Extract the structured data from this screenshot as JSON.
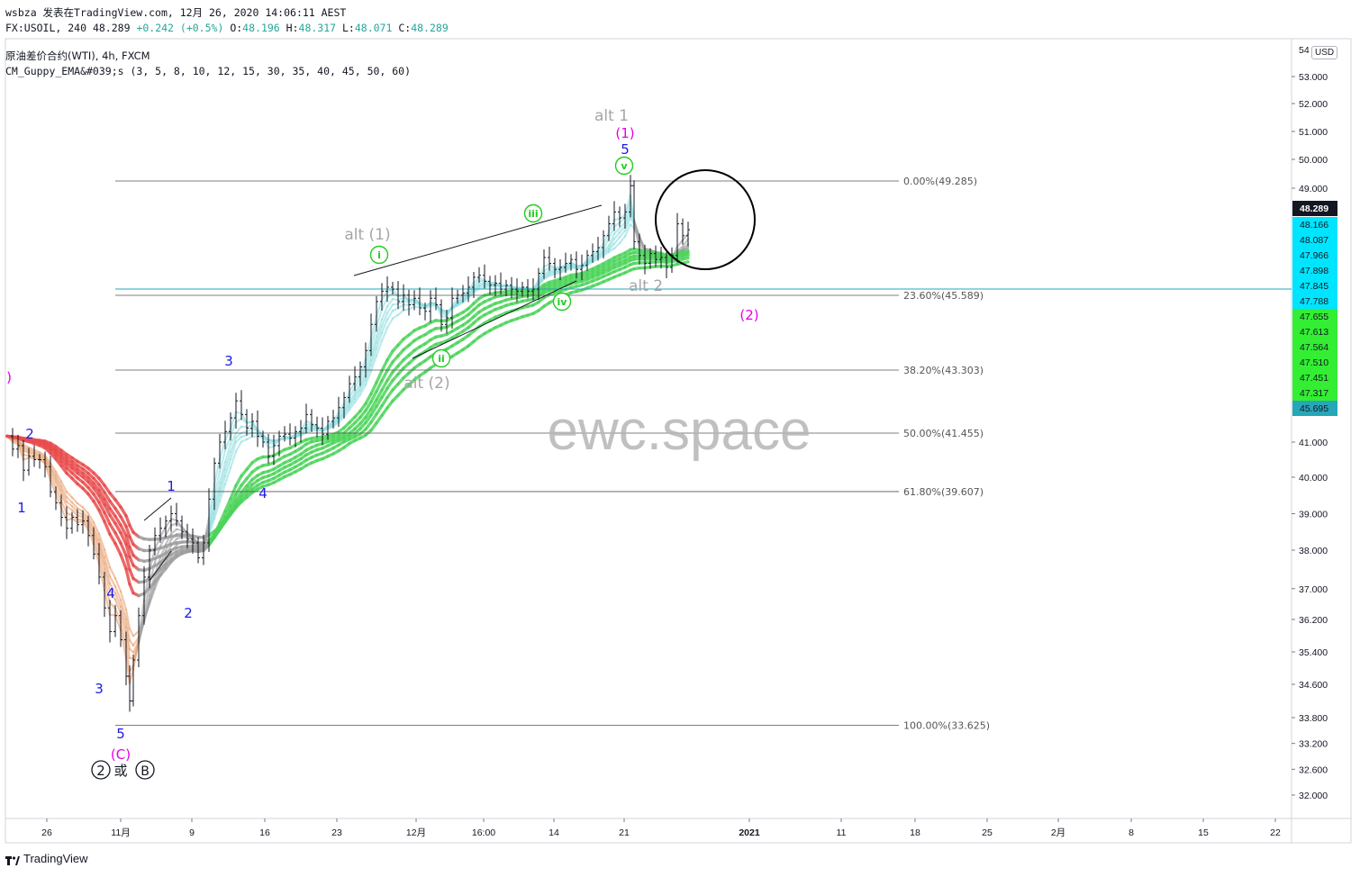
{
  "header": {
    "line1": "wsbza 发表在TradingView.com, 12月 26, 2020 14:06:11 AEST",
    "symbol": "FX:USOIL, 240",
    "last": "48.289",
    "change": "+0.242 (+0.5%)",
    "o_label": "O:",
    "o_value": "48.196",
    "h_label": "H:",
    "h_value": "48.317",
    "l_label": "L:",
    "l_value": "48.071",
    "c_label": "C:",
    "c_value": "48.289",
    "instrument": "原油差价合约(WTI), 4h, FXCM",
    "indicator": "CM_Guppy_EMA&#039;s (3, 5, 8, 10, 12, 15, 30, 35, 40, 45, 50, 60)"
  },
  "footer": {
    "brand": "TradingView"
  },
  "watermark": "ewc.space",
  "currency": "USD",
  "colors": {
    "bullish_ema": "#4cd45a",
    "bullish_fast": "#8fdde0",
    "bearish_ema": "#e84c4c",
    "bearish_fast": "#e8a070",
    "neutral_ema": "#9e9e9e",
    "wave_blue": "#1a1ae6",
    "wave_magenta": "#e600e6",
    "wave_green": "#22cc22",
    "alt_gray": "#a6a6a6",
    "fib_line": "#555555",
    "hline": "#26a7b8"
  },
  "chart_data": {
    "type": "candlestick",
    "title": "原油差价合约(WTI), 4h, FXCM",
    "y_axis": {
      "ticks": [
        32,
        32.6,
        33.2,
        33.8,
        34.6,
        35.4,
        36.2,
        37,
        38,
        39,
        40,
        41
      ],
      "tick_labels": [
        "32.000",
        "32.600",
        "33.200",
        "33.800",
        "34.600",
        "35.400",
        "36.200",
        "37.000",
        "38.000",
        "39.000",
        "40.000",
        "41.000"
      ],
      "upper_ticks": [
        49,
        50,
        51,
        52,
        53
      ],
      "upper_tick_labels": [
        "49.000",
        "50.000",
        "51.000",
        "52.000",
        "53.000"
      ],
      "top_partial": "54",
      "scale": "custom"
    },
    "x_axis": {
      "tick_labels": [
        "26",
        "11月",
        "9",
        "16",
        "23",
        "12月",
        "16:00",
        "14",
        "21",
        "2021",
        "11",
        "18",
        "25",
        "2月",
        "8",
        "15",
        "22"
      ]
    },
    "fibonacci": [
      {
        "level": "0.00%",
        "price": 49.285,
        "label": "0.00%(49.285)"
      },
      {
        "level": "23.60%",
        "price": 45.589,
        "label": "23.60%(45.589)"
      },
      {
        "level": "38.20%",
        "price": 43.303,
        "label": "38.20%(43.303)"
      },
      {
        "level": "50.00%",
        "price": 41.455,
        "label": "50.00%(41.455)"
      },
      {
        "level": "61.80%",
        "price": 39.607,
        "label": "61.80%(39.607)"
      },
      {
        "level": "100.00%",
        "price": 33.625,
        "label": "100.00%(33.625)"
      }
    ],
    "price_scale_labels": [
      {
        "text": "48.289",
        "bg": "#131722",
        "fg": "#ffffff"
      },
      {
        "text": "48.166",
        "bg": "#00e5ff",
        "fg": "#131722"
      },
      {
        "text": "48.087",
        "bg": "#00e5ff",
        "fg": "#131722"
      },
      {
        "text": "47.966",
        "bg": "#00e5ff",
        "fg": "#131722"
      },
      {
        "text": "47.898",
        "bg": "#00e5ff",
        "fg": "#131722"
      },
      {
        "text": "47.845",
        "bg": "#00e5ff",
        "fg": "#131722"
      },
      {
        "text": "47.788",
        "bg": "#00e5ff",
        "fg": "#131722"
      },
      {
        "text": "47.655",
        "bg": "#33ee33",
        "fg": "#131722"
      },
      {
        "text": "47.613",
        "bg": "#33ee33",
        "fg": "#131722"
      },
      {
        "text": "47.564",
        "bg": "#33ee33",
        "fg": "#131722"
      },
      {
        "text": "47.510",
        "bg": "#33ee33",
        "fg": "#131722"
      },
      {
        "text": "47.451",
        "bg": "#33ee33",
        "fg": "#131722"
      },
      {
        "text": "47.317",
        "bg": "#33ee33",
        "fg": "#131722"
      },
      {
        "text": "45.695",
        "bg": "#26a7b8",
        "fg": "#131722"
      }
    ],
    "wave_labels": [
      {
        "text": "1",
        "color": "blue"
      },
      {
        "text": "2",
        "color": "blue"
      },
      {
        "text": "3",
        "color": "blue"
      },
      {
        "text": "4",
        "color": "blue"
      },
      {
        "text": "5",
        "color": "blue"
      },
      {
        "text": "(C)",
        "color": "magenta"
      },
      {
        "text": "1",
        "color": "blue"
      },
      {
        "text": "2",
        "color": "blue"
      },
      {
        "text": "3",
        "color": "blue"
      },
      {
        "text": "4",
        "color": "blue"
      },
      {
        "text": "5",
        "color": "blue"
      },
      {
        "text": "(1)",
        "color": "magenta"
      },
      {
        "text": "(2)",
        "color": "magenta"
      },
      {
        "text": "i",
        "color": "green"
      },
      {
        "text": "ii",
        "color": "green"
      },
      {
        "text": "iii",
        "color": "green"
      },
      {
        "text": "iv",
        "color": "green"
      },
      {
        "text": "v",
        "color": "green"
      },
      {
        "text": "alt (1)",
        "color": "gray"
      },
      {
        "text": "alt (2)",
        "color": "gray"
      },
      {
        "text": "alt 1",
        "color": "gray"
      },
      {
        "text": "alt 2",
        "color": "gray"
      },
      {
        "text": ")",
        "color": "magenta"
      }
    ],
    "bottom_annotation": {
      "left": "2",
      "middle": "或",
      "right": "B"
    },
    "price_path": [
      [
        0,
        41.3
      ],
      [
        6,
        40.8
      ],
      [
        12,
        40.9
      ],
      [
        18,
        40.2
      ],
      [
        24,
        40.6
      ],
      [
        30,
        40.5
      ],
      [
        36,
        40.5
      ],
      [
        42,
        40.3
      ],
      [
        48,
        39.6
      ],
      [
        54,
        39.3
      ],
      [
        60,
        38.9
      ],
      [
        66,
        38.6
      ],
      [
        72,
        38.9
      ],
      [
        78,
        38.7
      ],
      [
        84,
        38.8
      ],
      [
        90,
        38.4
      ],
      [
        96,
        37.9
      ],
      [
        102,
        37.3
      ],
      [
        108,
        36.5
      ],
      [
        114,
        35.9
      ],
      [
        120,
        36.3
      ],
      [
        126,
        35.7
      ],
      [
        132,
        34.8
      ],
      [
        136,
        34.2
      ],
      [
        140,
        35.2
      ],
      [
        146,
        36.3
      ],
      [
        152,
        37.3
      ],
      [
        158,
        38.0
      ],
      [
        164,
        38.4
      ],
      [
        170,
        38.6
      ],
      [
        176,
        38.8
      ],
      [
        182,
        39.0
      ],
      [
        188,
        38.8
      ],
      [
        194,
        38.5
      ],
      [
        200,
        38.3
      ],
      [
        206,
        38.2
      ],
      [
        212,
        37.8
      ],
      [
        218,
        38.2
      ],
      [
        224,
        39.4
      ],
      [
        230,
        40.4
      ],
      [
        236,
        41.0
      ],
      [
        242,
        41.5
      ],
      [
        248,
        41.9
      ],
      [
        254,
        42.4
      ],
      [
        260,
        42.0
      ],
      [
        266,
        41.6
      ],
      [
        272,
        41.8
      ],
      [
        278,
        41.3
      ],
      [
        284,
        41.0
      ],
      [
        290,
        40.6
      ],
      [
        296,
        40.9
      ],
      [
        302,
        41.3
      ],
      [
        308,
        41.4
      ],
      [
        314,
        41.2
      ],
      [
        320,
        41.5
      ],
      [
        326,
        41.6
      ],
      [
        332,
        42.0
      ],
      [
        338,
        41.7
      ],
      [
        344,
        41.6
      ],
      [
        350,
        41.4
      ],
      [
        356,
        41.8
      ],
      [
        362,
        41.9
      ],
      [
        368,
        42.2
      ],
      [
        374,
        42.5
      ],
      [
        380,
        42.9
      ],
      [
        386,
        43.1
      ],
      [
        392,
        43.4
      ],
      [
        398,
        43.9
      ],
      [
        404,
        44.7
      ],
      [
        410,
        45.4
      ],
      [
        416,
        45.8
      ],
      [
        422,
        46.0
      ],
      [
        428,
        45.9
      ],
      [
        434,
        45.4
      ],
      [
        440,
        45.6
      ],
      [
        446,
        45.3
      ],
      [
        452,
        45.5
      ],
      [
        458,
        45.2
      ],
      [
        464,
        45.1
      ],
      [
        470,
        45.5
      ],
      [
        476,
        45.3
      ],
      [
        482,
        44.7
      ],
      [
        488,
        44.9
      ],
      [
        494,
        45.5
      ],
      [
        500,
        45.6
      ],
      [
        506,
        45.7
      ],
      [
        512,
        46.0
      ],
      [
        518,
        46.5
      ],
      [
        524,
        46.6
      ],
      [
        530,
        46.3
      ],
      [
        536,
        46.1
      ],
      [
        542,
        46.2
      ],
      [
        548,
        45.9
      ],
      [
        554,
        46.1
      ],
      [
        560,
        45.9
      ],
      [
        566,
        45.8
      ],
      [
        572,
        46.0
      ],
      [
        578,
        45.8
      ],
      [
        584,
        45.9
      ],
      [
        590,
        46.7
      ],
      [
        596,
        47.5
      ],
      [
        602,
        47.2
      ],
      [
        608,
        46.9
      ],
      [
        614,
        47.0
      ],
      [
        620,
        47.2
      ],
      [
        626,
        47.4
      ],
      [
        632,
        46.9
      ],
      [
        638,
        47.1
      ],
      [
        644,
        47.6
      ],
      [
        650,
        47.8
      ],
      [
        656,
        48.0
      ],
      [
        662,
        48.2
      ],
      [
        668,
        48.4
      ],
      [
        674,
        48.6
      ],
      [
        680,
        48.5
      ],
      [
        686,
        48.6
      ],
      [
        692,
        49.1
      ],
      [
        696,
        48.1
      ],
      [
        702,
        47.6
      ],
      [
        708,
        47.2
      ],
      [
        714,
        47.7
      ],
      [
        720,
        47.4
      ],
      [
        726,
        47.5
      ],
      [
        732,
        47.0
      ],
      [
        738,
        47.6
      ],
      [
        744,
        48.4
      ],
      [
        750,
        48.2
      ],
      [
        756,
        48.3
      ]
    ]
  }
}
